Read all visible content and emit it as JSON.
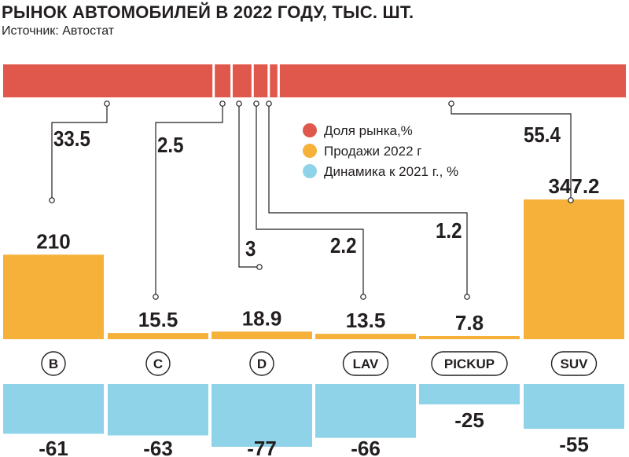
{
  "header": {
    "title": "РЫНОК АВТОМОБИЛЕЙ В 2022 ГОДУ, ТЫС. ШТ.",
    "source": "Источник: Автостат"
  },
  "legend": {
    "items": [
      {
        "label": "Доля рынка,%",
        "color": "#e0574b"
      },
      {
        "label": "Продажи 2022 г",
        "color": "#f6b13a"
      },
      {
        "label": "Динамика к 2021 г., %",
        "color": "#8fd3e8"
      }
    ]
  },
  "chart_data": {
    "type": "bar",
    "categories": [
      "B",
      "C",
      "D",
      "LAV",
      "PICKUP",
      "SUV"
    ],
    "series": [
      {
        "name": "Доля рынка,%",
        "values": [
          33.5,
          2.5,
          3,
          2.2,
          1.2,
          55.4
        ],
        "labels": [
          "33.5",
          "2.5",
          "3",
          "2.2",
          "1.2",
          "55.4"
        ]
      },
      {
        "name": "Продажи 2022 г",
        "values": [
          210,
          15.5,
          18.9,
          13.5,
          7.8,
          347.2
        ],
        "labels": [
          "210",
          "15.5",
          "18.9",
          "13.5",
          "7.8",
          "347.2"
        ]
      },
      {
        "name": "Динамика к 2021 г., %",
        "values": [
          -61,
          -63,
          -77,
          -66,
          -25,
          -55
        ],
        "labels": [
          "-61",
          "-63",
          "-77",
          "-66",
          "-25",
          "-55"
        ]
      }
    ],
    "colors": {
      "share": "#e0574b",
      "sales": "#f6b13a",
      "change": "#8fd3e8"
    }
  }
}
